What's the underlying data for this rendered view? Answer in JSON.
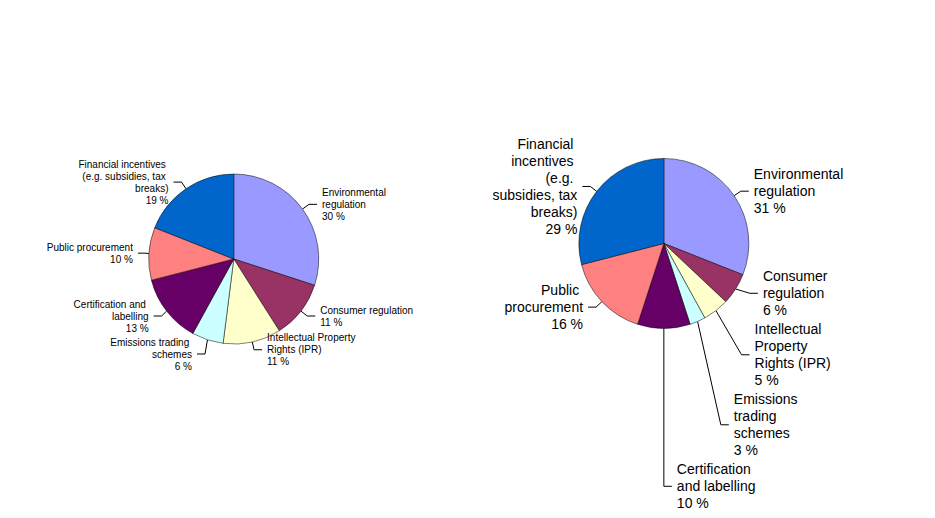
{
  "chart_data": [
    {
      "type": "pie",
      "categories": [
        "Environmental regulation",
        "Consumer regulation",
        "Intellectual Property Rights (IPR)",
        "Emissions trading schemes",
        "Certification and labelling",
        "Public procurement",
        "Financial incentives (e.g. subsidies, tax breaks)"
      ],
      "values": [
        30,
        11,
        11,
        6,
        13,
        10,
        19
      ],
      "value_labels": [
        "30 %",
        "11 %",
        "11 %",
        "6 %",
        "13 %",
        "10 %",
        "19 %"
      ],
      "colors": [
        "#9999ff",
        "#993366",
        "#ffffcc",
        "#ccffff",
        "#660066",
        "#ff8080",
        "#0066cc"
      ],
      "data_labels": true
    },
    {
      "type": "pie",
      "categories": [
        "Environmental regulation",
        "Consumer regulation",
        "Intellectual Property Rights (IPR)",
        "Emissions trading schemes",
        "Certification and labelling",
        "Public procurement",
        "Financial incentives (e.g. subsidies, tax breaks)"
      ],
      "values": [
        31,
        6,
        5,
        3,
        10,
        16,
        29
      ],
      "value_labels": [
        "31 %",
        "6 %",
        "5 %",
        "3 %",
        "10 %",
        "16 %",
        "29 %"
      ],
      "colors": [
        "#9999ff",
        "#993366",
        "#ffffcc",
        "#ccffff",
        "#660066",
        "#ff8080",
        "#0066cc"
      ],
      "data_labels": true
    }
  ]
}
